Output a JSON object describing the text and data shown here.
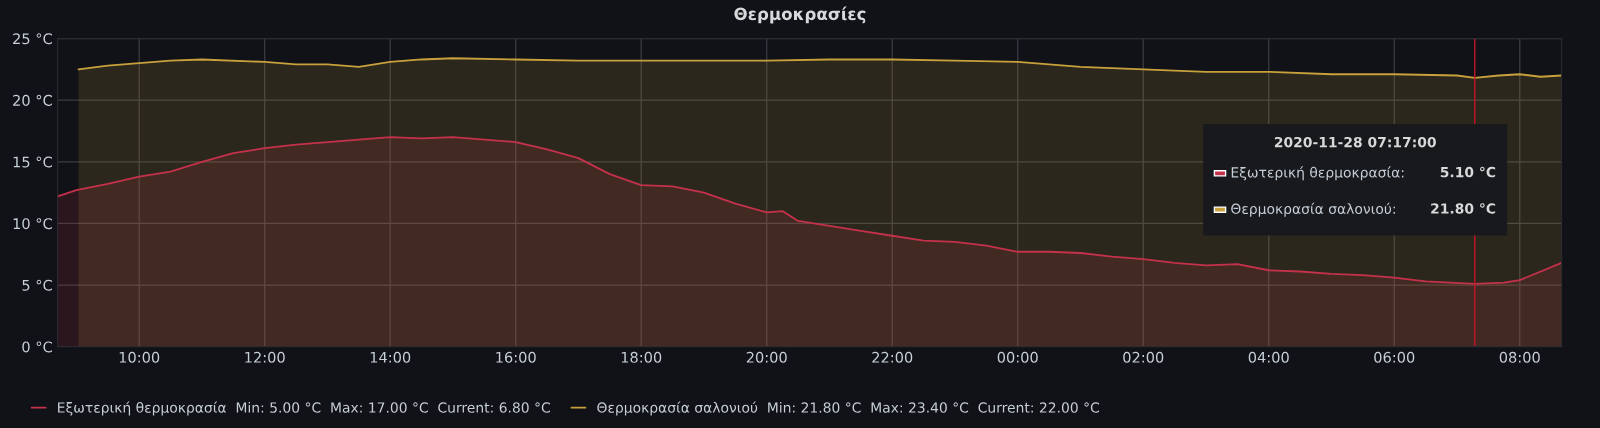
{
  "chart_data": {
    "type": "area",
    "title": "Θερμοκρασίες",
    "xlim": [
      "2020-11-27T08:42",
      "2020-11-28T08:40"
    ],
    "xticks": [
      {
        "value": "2020-11-27T10:00",
        "label": "10:00"
      },
      {
        "value": "2020-11-27T12:00",
        "label": "12:00"
      },
      {
        "value": "2020-11-27T14:00",
        "label": "14:00"
      },
      {
        "value": "2020-11-27T16:00",
        "label": "16:00"
      },
      {
        "value": "2020-11-27T18:00",
        "label": "18:00"
      },
      {
        "value": "2020-11-27T20:00",
        "label": "20:00"
      },
      {
        "value": "2020-11-27T22:00",
        "label": "22:00"
      },
      {
        "value": "2020-11-28T00:00",
        "label": "00:00"
      },
      {
        "value": "2020-11-28T02:00",
        "label": "02:00"
      },
      {
        "value": "2020-11-28T04:00",
        "label": "04:00"
      },
      {
        "value": "2020-11-28T06:00",
        "label": "06:00"
      },
      {
        "value": "2020-11-28T08:00",
        "label": "08:00"
      }
    ],
    "ylim": [
      0,
      25
    ],
    "yticks": [
      {
        "value": 0,
        "label": "0 °C"
      },
      {
        "value": 5,
        "label": "5 °C"
      },
      {
        "value": 10,
        "label": "10 °C"
      },
      {
        "value": 15,
        "label": "15 °C"
      },
      {
        "value": 20,
        "label": "20 °C"
      },
      {
        "value": 25,
        "label": "25 °C"
      }
    ],
    "grid": true,
    "legend": "bottom left",
    "line_style": "solid",
    "ref_lines": [
      {
        "axis": "x",
        "value": "2020-11-28T07:17",
        "color": "#c4162a"
      }
    ],
    "annotations": [
      "2020-11-28 07:17:00",
      "Εξωτερική θερμοκρασία:",
      "5.10 °C",
      "Θερμοκρασία σαλονιού:",
      "21.80 °C"
    ],
    "series": [
      {
        "name": "Εξωτερική θερμοκρασία  Min: 5.00 °C  Max: 17.00 °C  Current: 6.80 °C",
        "color": "#c4314b",
        "x": [
          "2020-11-27T08:42",
          "2020-11-27T09:00",
          "2020-11-27T09:30",
          "2020-11-27T10:00",
          "2020-11-27T10:30",
          "2020-11-27T11:00",
          "2020-11-27T11:30",
          "2020-11-27T12:00",
          "2020-11-27T12:30",
          "2020-11-27T13:00",
          "2020-11-27T13:30",
          "2020-11-27T14:00",
          "2020-11-27T14:30",
          "2020-11-27T15:00",
          "2020-11-27T15:30",
          "2020-11-27T16:00",
          "2020-11-27T16:30",
          "2020-11-27T17:00",
          "2020-11-27T17:30",
          "2020-11-27T18:00",
          "2020-11-27T18:30",
          "2020-11-27T19:00",
          "2020-11-27T19:30",
          "2020-11-27T20:00",
          "2020-11-27T20:15",
          "2020-11-27T20:30",
          "2020-11-27T21:00",
          "2020-11-27T21:30",
          "2020-11-27T22:00",
          "2020-11-27T22:30",
          "2020-11-27T23:00",
          "2020-11-27T23:30",
          "2020-11-28T00:00",
          "2020-11-28T00:30",
          "2020-11-28T01:00",
          "2020-11-28T01:30",
          "2020-11-28T02:00",
          "2020-11-28T02:30",
          "2020-11-28T03:00",
          "2020-11-28T03:30",
          "2020-11-28T04:00",
          "2020-11-28T04:30",
          "2020-11-28T05:00",
          "2020-11-28T05:30",
          "2020-11-28T06:00",
          "2020-11-28T06:30",
          "2020-11-28T07:17",
          "2020-11-28T07:45",
          "2020-11-28T08:00",
          "2020-11-28T08:40"
        ],
        "values": [
          12.2,
          12.7,
          13.2,
          13.8,
          14.2,
          15.0,
          15.7,
          16.1,
          16.4,
          16.6,
          16.8,
          17.0,
          16.9,
          17.0,
          16.8,
          16.6,
          16.0,
          15.3,
          14.0,
          13.1,
          13.0,
          12.5,
          11.6,
          10.9,
          11.0,
          10.2,
          9.8,
          9.4,
          9.0,
          8.6,
          8.5,
          8.2,
          7.7,
          7.7,
          7.6,
          7.3,
          7.1,
          6.8,
          6.6,
          6.7,
          6.2,
          6.1,
          5.9,
          5.8,
          5.6,
          5.3,
          5.1,
          5.2,
          5.4,
          6.8
        ]
      },
      {
        "name": "Θερμοκρασία σαλονιού  Min: 21.80 °C  Max: 23.40 °C  Current: 22.00 °C",
        "color": "#c8a13c",
        "x": [
          "2020-11-27T09:02",
          "2020-11-27T09:30",
          "2020-11-27T10:00",
          "2020-11-27T10:30",
          "2020-11-27T11:00",
          "2020-11-27T12:00",
          "2020-11-27T12:30",
          "2020-11-27T13:00",
          "2020-11-27T13:30",
          "2020-11-27T14:00",
          "2020-11-27T14:30",
          "2020-11-27T15:00",
          "2020-11-27T16:00",
          "2020-11-27T17:00",
          "2020-11-27T18:00",
          "2020-11-27T19:00",
          "2020-11-27T20:00",
          "2020-11-27T21:00",
          "2020-11-27T22:00",
          "2020-11-27T23:00",
          "2020-11-28T00:00",
          "2020-11-28T00:30",
          "2020-11-28T01:00",
          "2020-11-28T02:00",
          "2020-11-28T03:00",
          "2020-11-28T04:00",
          "2020-11-28T05:00",
          "2020-11-28T06:00",
          "2020-11-28T07:00",
          "2020-11-28T07:17",
          "2020-11-28T07:40",
          "2020-11-28T08:00",
          "2020-11-28T08:20",
          "2020-11-28T08:40"
        ],
        "values": [
          22.5,
          22.8,
          23.0,
          23.2,
          23.3,
          23.1,
          22.9,
          22.9,
          22.7,
          23.1,
          23.3,
          23.4,
          23.3,
          23.2,
          23.2,
          23.2,
          23.2,
          23.3,
          23.3,
          23.2,
          23.1,
          22.9,
          22.7,
          22.5,
          22.3,
          22.3,
          22.1,
          22.1,
          22.0,
          21.8,
          22.0,
          22.1,
          21.9,
          22.0
        ]
      }
    ]
  }
}
